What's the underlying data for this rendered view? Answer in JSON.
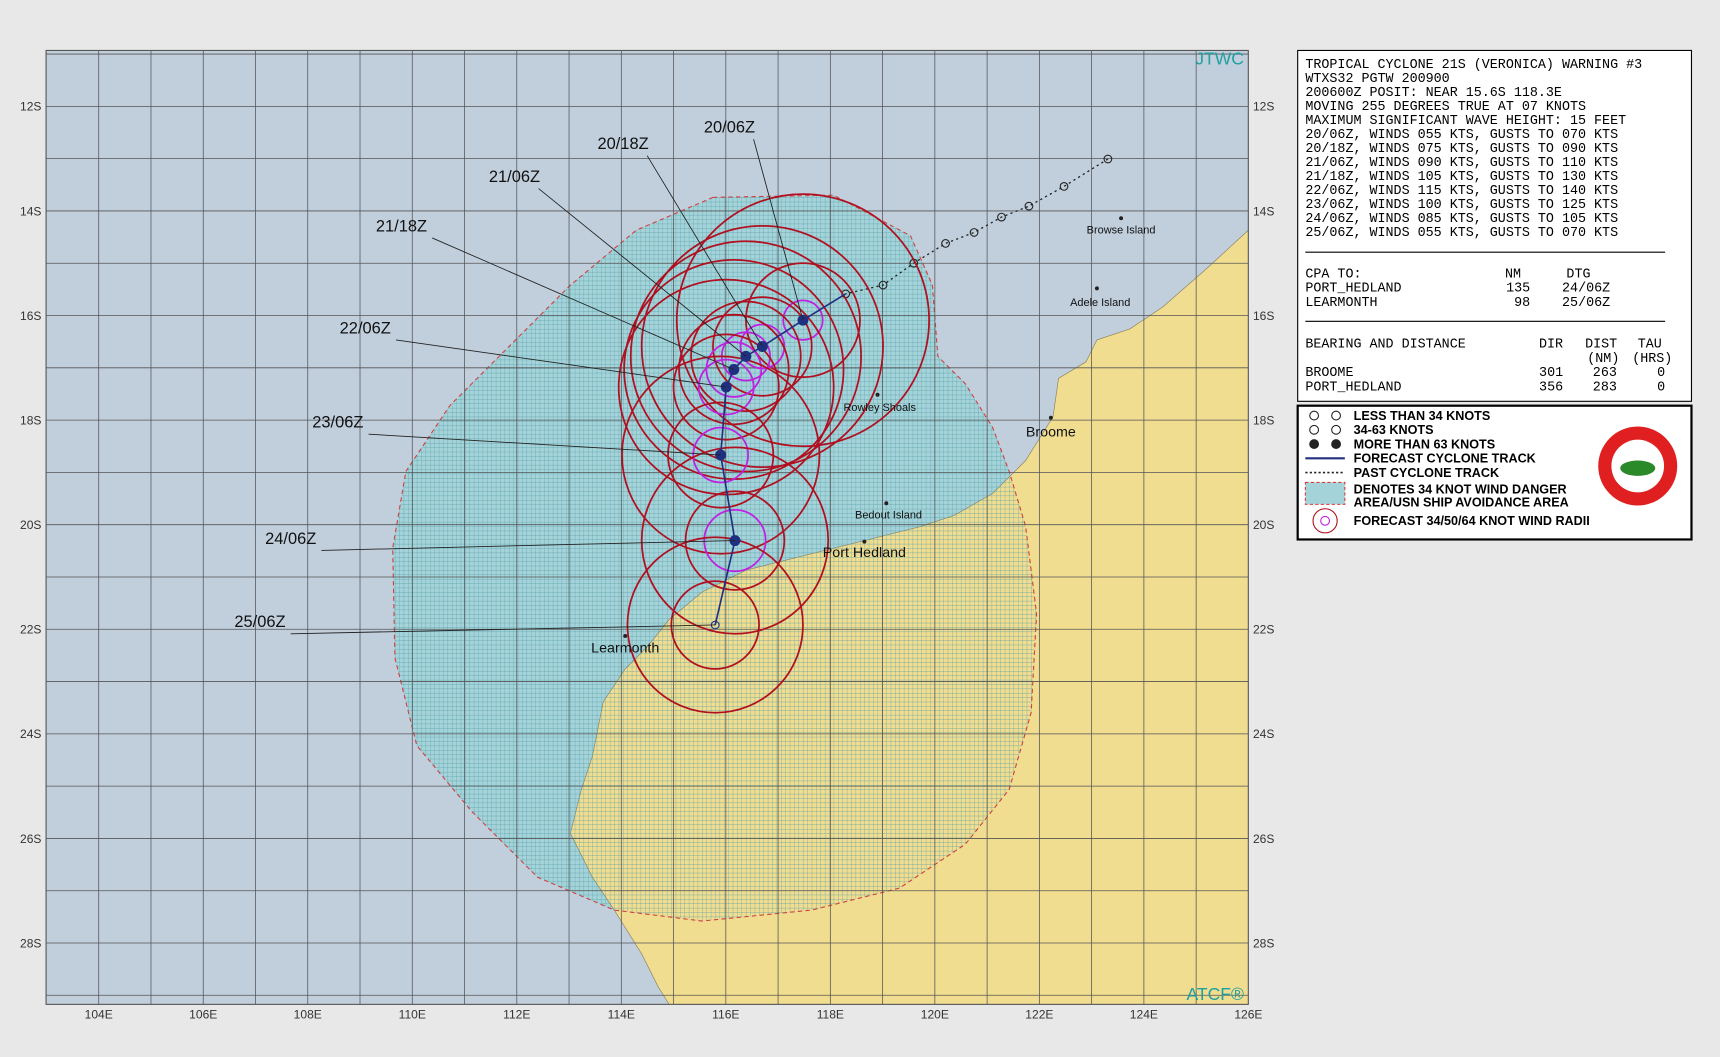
{
  "map": {
    "agency": "JTWC",
    "footer": "ATCF®",
    "lat_labels": [
      "12S",
      "14S",
      "16S",
      "18S",
      "20S",
      "22S",
      "24S",
      "26S",
      "28S"
    ],
    "lon_labels": [
      "104E",
      "106E",
      "108E",
      "110E",
      "112E",
      "114E",
      "116E",
      "118E",
      "120E",
      "122E",
      "124E",
      "126E"
    ],
    "forecast_labels": [
      "20/06Z",
      "20/18Z",
      "21/06Z",
      "21/18Z",
      "22/06Z",
      "23/06Z",
      "24/06Z",
      "25/06Z"
    ],
    "places": [
      "Browse Island",
      "Adele Island",
      "Rowley Shoals",
      "Bedout Island",
      "Broome",
      "Port Hedland",
      "Learmonth"
    ]
  },
  "warning": {
    "title": "TROPICAL CYCLONE 21S (VERONICA) WARNING #3",
    "lines": [
      "WTXS32 PGTW 200900",
      "200600Z POSIT: NEAR 15.6S 118.3E",
      "MOVING 255 DEGREES TRUE AT 07 KNOTS",
      "MAXIMUM SIGNIFICANT WAVE HEIGHT: 15 FEET",
      "20/06Z, WINDS 055 KTS, GUSTS TO 070 KTS",
      "20/18Z, WINDS 075 KTS, GUSTS TO 090 KTS",
      "21/06Z, WINDS 090 KTS, GUSTS TO 110 KTS",
      "21/18Z, WINDS 105 KTS, GUSTS TO 130 KTS",
      "22/06Z, WINDS 115 KTS, GUSTS TO 140 KTS",
      "23/06Z, WINDS 100 KTS, GUSTS TO 125 KTS",
      "24/06Z, WINDS 085 KTS, GUSTS TO 105 KTS",
      "25/06Z, WINDS 055 KTS, GUSTS TO 070 KTS"
    ],
    "cpa": {
      "header": [
        "CPA TO:",
        "NM",
        "DTG"
      ],
      "rows": [
        [
          "PORT_HEDLAND",
          "135",
          "24/06Z"
        ],
        [
          "LEARMONTH",
          "98",
          "25/06Z"
        ]
      ]
    },
    "bearing": {
      "header": [
        "BEARING AND DISTANCE",
        "DIR",
        "DIST",
        "TAU"
      ],
      "subheader": [
        "(NM)",
        "(HRS)"
      ],
      "rows": [
        [
          "BROOME",
          "301",
          "263",
          "0"
        ],
        [
          "PORT_HEDLAND",
          "356",
          "283",
          "0"
        ]
      ]
    }
  },
  "legend": {
    "items": [
      "LESS THAN 34 KNOTS",
      "34-63 KNOTS",
      "MORE THAN 63 KNOTS",
      "FORECAST CYCLONE TRACK",
      "PAST CYCLONE TRACK",
      "DENOTES 34 KNOT WIND DANGER",
      "AREA/USN SHIP AVOIDANCE AREA",
      "FORECAST 34/50/64 KNOT WIND RADII"
    ]
  }
}
